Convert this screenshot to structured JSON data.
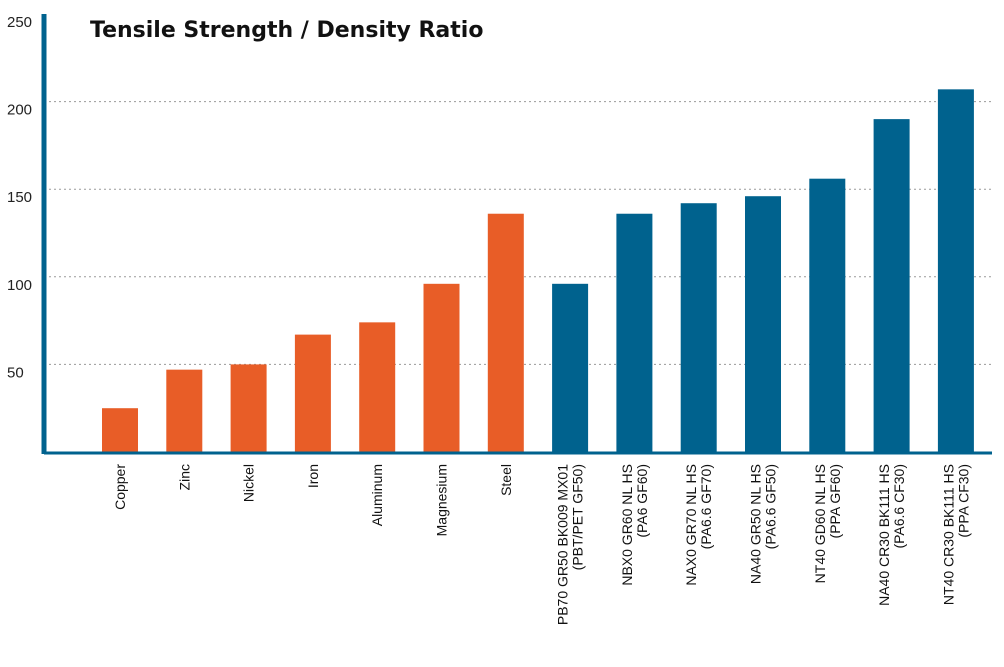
{
  "chart_data": {
    "type": "bar",
    "title": "Tensile Strength / Density Ratio",
    "xlabel": "",
    "ylabel": "",
    "ylim": [
      0,
      250
    ],
    "yticks": [
      50,
      100,
      150,
      200,
      250
    ],
    "grid": "horizontal dotted",
    "legend": "none",
    "categories": [
      [
        "Copper"
      ],
      [
        "Zinc"
      ],
      [
        "Nickel"
      ],
      [
        "Iron"
      ],
      [
        "Aluminum"
      ],
      [
        "Magnesium"
      ],
      [
        "Steel"
      ],
      [
        "PB70 GR50 BK009 MX01",
        "(PBT/PET GF50)"
      ],
      [
        "NBX0 GR60 NL HS",
        "(PA6 GF60)"
      ],
      [
        "NAX0 GR70 NL HS",
        "(PA6.6 GF70)"
      ],
      [
        "NA40 GR50 NL HS",
        "(PA6.6 GF50)"
      ],
      [
        "NT40 GD60 NL HS",
        "(PPA GF60)"
      ],
      [
        "NA40 CR30 BK111 HS",
        "(PA6.6 CF30)"
      ],
      [
        "NT40 CR30 BK111 HS",
        "(PPA CF30)"
      ]
    ],
    "values": [
      25,
      47,
      50,
      67,
      74,
      96,
      136,
      96,
      136,
      142,
      146,
      156,
      190,
      207
    ],
    "colors": [
      "#e85d27",
      "#e85d27",
      "#e85d27",
      "#e85d27",
      "#e85d27",
      "#e85d27",
      "#e85d27",
      "#00628e",
      "#00628e",
      "#00628e",
      "#00628e",
      "#00628e",
      "#00628e",
      "#00628e"
    ],
    "axis_color": "#00628e"
  }
}
